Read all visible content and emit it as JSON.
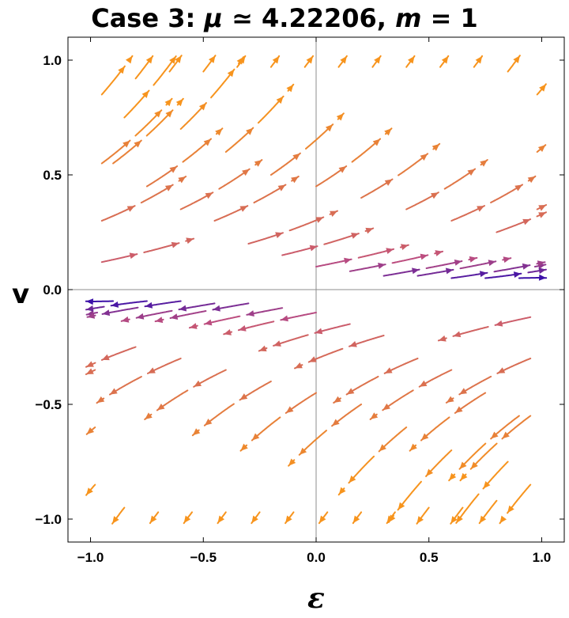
{
  "title": {
    "prefix": "Case 3: ",
    "mu_symbol": "μ",
    "middle": " ≃ 4.22206, ",
    "m_symbol": "m",
    "suffix": " = 1"
  },
  "chart_data": {
    "type": "streamplot",
    "title": "Case 3: μ ≃ 4.22206, m = 1",
    "xlabel": "ε",
    "ylabel": "v",
    "xlim": [
      -1.1,
      1.1
    ],
    "ylim": [
      -1.1,
      1.1
    ],
    "xticks": [
      -1.0,
      -0.5,
      0.0,
      0.5,
      1.0
    ],
    "yticks": [
      -1.0,
      -0.5,
      0.0,
      0.5,
      1.0
    ],
    "xtick_labels": [
      "−1.0",
      "−0.5",
      "0.0",
      "0.5",
      "1.0"
    ],
    "ytick_labels": [
      "−1.0",
      "−0.5",
      "0.0",
      "0.5",
      "1.0"
    ],
    "grid": false,
    "color_scale": "magnitude",
    "colors": {
      "low": "#3c10a8",
      "mid": "#c04f7e",
      "high": "#f7941d",
      "axis": "#8c8c8c"
    },
    "stream_starts": [
      [
        -0.95,
        0.85
      ],
      [
        -0.85,
        0.75
      ],
      [
        -0.95,
        0.55
      ],
      [
        -0.95,
        0.3
      ],
      [
        -0.95,
        0.12
      ],
      [
        -0.8,
        0.92
      ],
      [
        -0.65,
        0.95
      ],
      [
        -0.5,
        0.95
      ],
      [
        -0.35,
        0.97
      ],
      [
        -0.2,
        0.97
      ],
      [
        -0.05,
        0.97
      ],
      [
        0.1,
        0.97
      ],
      [
        0.25,
        0.97
      ],
      [
        0.4,
        0.97
      ],
      [
        0.55,
        0.97
      ],
      [
        0.7,
        0.97
      ],
      [
        0.85,
        0.95
      ],
      [
        0.98,
        0.85
      ],
      [
        0.98,
        0.6
      ],
      [
        0.98,
        0.35
      ],
      [
        0.97,
        0.1
      ],
      [
        -0.9,
        0.55
      ],
      [
        -0.75,
        0.45
      ],
      [
        -0.6,
        0.35
      ],
      [
        -0.45,
        0.3
      ],
      [
        -0.3,
        0.2
      ],
      [
        -0.15,
        0.15
      ],
      [
        0.0,
        0.1
      ],
      [
        0.15,
        0.08
      ],
      [
        0.3,
        0.06
      ],
      [
        0.45,
        0.06
      ],
      [
        0.6,
        0.05
      ],
      [
        0.75,
        0.05
      ],
      [
        0.9,
        0.05
      ],
      [
        -0.6,
        0.7
      ],
      [
        -0.4,
        0.6
      ],
      [
        -0.2,
        0.5
      ],
      [
        0.0,
        0.45
      ],
      [
        0.2,
        0.4
      ],
      [
        0.4,
        0.35
      ],
      [
        0.6,
        0.3
      ],
      [
        0.8,
        0.25
      ],
      [
        0.95,
        -0.85
      ],
      [
        0.85,
        -0.75
      ],
      [
        0.95,
        -0.55
      ],
      [
        0.95,
        -0.3
      ],
      [
        0.95,
        -0.12
      ],
      [
        0.8,
        -0.92
      ],
      [
        0.65,
        -0.95
      ],
      [
        0.5,
        -0.95
      ],
      [
        0.35,
        -0.97
      ],
      [
        0.2,
        -0.97
      ],
      [
        0.05,
        -0.97
      ],
      [
        -0.1,
        -0.97
      ],
      [
        -0.25,
        -0.97
      ],
      [
        -0.4,
        -0.97
      ],
      [
        -0.55,
        -0.97
      ],
      [
        -0.7,
        -0.97
      ],
      [
        -0.85,
        -0.95
      ],
      [
        -0.98,
        -0.85
      ],
      [
        -0.98,
        -0.6
      ],
      [
        -0.98,
        -0.35
      ],
      [
        -0.97,
        -0.1
      ],
      [
        0.9,
        -0.55
      ],
      [
        0.75,
        -0.45
      ],
      [
        0.6,
        -0.35
      ],
      [
        0.45,
        -0.3
      ],
      [
        0.3,
        -0.2
      ],
      [
        0.15,
        -0.15
      ],
      [
        0.0,
        -0.1
      ],
      [
        -0.15,
        -0.08
      ],
      [
        -0.3,
        -0.06
      ],
      [
        -0.45,
        -0.06
      ],
      [
        -0.6,
        -0.05
      ],
      [
        -0.75,
        -0.05
      ],
      [
        -0.9,
        -0.05
      ],
      [
        0.6,
        -0.7
      ],
      [
        0.4,
        -0.6
      ],
      [
        0.2,
        -0.5
      ],
      [
        0.0,
        -0.45
      ],
      [
        -0.2,
        -0.4
      ],
      [
        -0.4,
        -0.35
      ],
      [
        -0.6,
        -0.3
      ],
      [
        -0.8,
        -0.25
      ]
    ]
  }
}
